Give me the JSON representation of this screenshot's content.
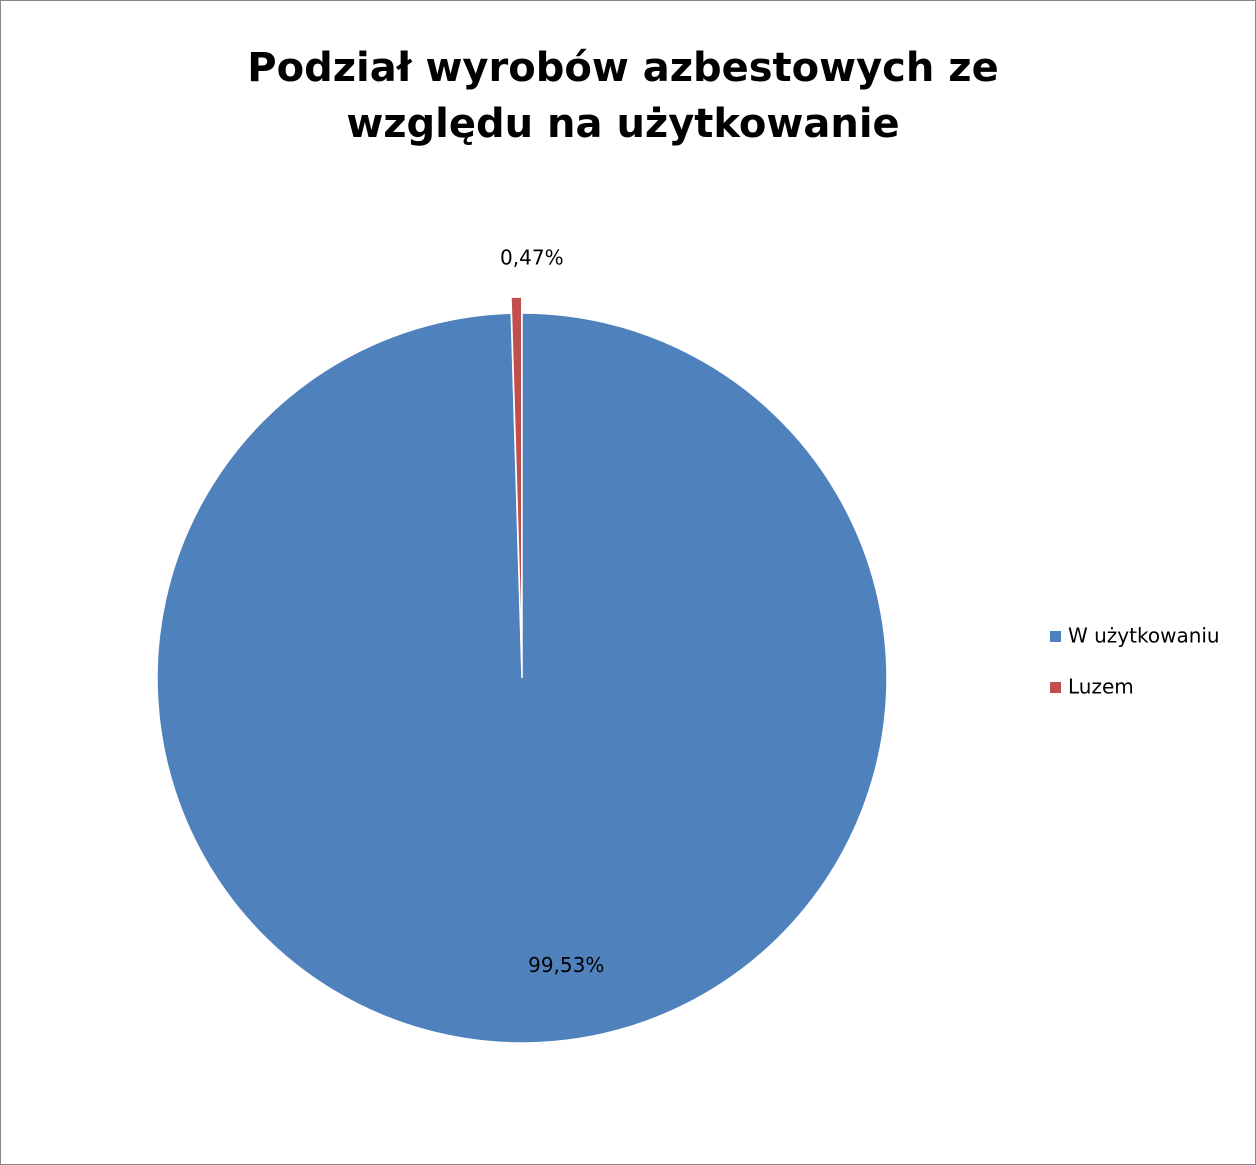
{
  "chart_data": {
    "type": "pie",
    "title": "Podział wyrobów azbestowych ze względu na użytkowanie",
    "categories": [
      "W użytkowaniu",
      "Luzem"
    ],
    "values": [
      99.53,
      0.47
    ],
    "value_labels": [
      "99,53%",
      "0,47%"
    ],
    "colors": [
      "#4f81bd",
      "#c0504d"
    ],
    "legend": "right"
  }
}
